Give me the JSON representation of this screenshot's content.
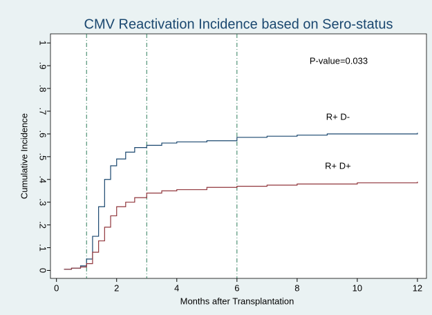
{
  "chart_data": {
    "type": "step",
    "title": "CMV Reactivation Incidence based on Sero-status",
    "xlabel": "Months after Transplantation",
    "ylabel": "Cumulative Incidence",
    "annotation": "P-value=0.033",
    "x": [
      0.25,
      0.5,
      0.8,
      1.0,
      1.2,
      1.4,
      1.6,
      1.8,
      2.0,
      2.3,
      2.6,
      3.0,
      3.5,
      4,
      5,
      6,
      7,
      8,
      9,
      10,
      11,
      12
    ],
    "series": [
      {
        "name": "R+ D-",
        "color": "#1a476f",
        "values": [
          0.005,
          0.01,
          0.02,
          0.05,
          0.15,
          0.28,
          0.4,
          0.46,
          0.49,
          0.52,
          0.54,
          0.55,
          0.56,
          0.565,
          0.57,
          0.585,
          0.59,
          0.595,
          0.6,
          0.6,
          0.6,
          0.605
        ]
      },
      {
        "name": "R+ D+",
        "color": "#90353b",
        "values": [
          0.005,
          0.01,
          0.015,
          0.03,
          0.08,
          0.13,
          0.19,
          0.24,
          0.28,
          0.3,
          0.32,
          0.34,
          0.35,
          0.355,
          0.365,
          0.37,
          0.375,
          0.38,
          0.38,
          0.385,
          0.385,
          0.39
        ]
      }
    ],
    "xlines": [
      1,
      3,
      6
    ],
    "xlim": [
      -0.2,
      12.3
    ],
    "ylim": [
      -0.035,
      1.04
    ],
    "xticks": [
      0,
      2,
      4,
      6,
      8,
      10,
      12
    ],
    "yticks": [
      0,
      {
        "value": 0.1,
        "label": ".1"
      },
      {
        "value": 0.2,
        "label": ".2"
      },
      {
        "value": 0.3,
        "label": ".3"
      },
      {
        "value": 0.4,
        "label": ".4"
      },
      {
        "value": 0.5,
        "label": ".5"
      },
      {
        "value": 0.6,
        "label": ".6"
      },
      {
        "value": 0.7,
        "label": ".7"
      },
      {
        "value": 0.8,
        "label": ".8"
      },
      {
        "value": 0.9,
        "label": ".9"
      },
      1
    ],
    "grid": false
  }
}
